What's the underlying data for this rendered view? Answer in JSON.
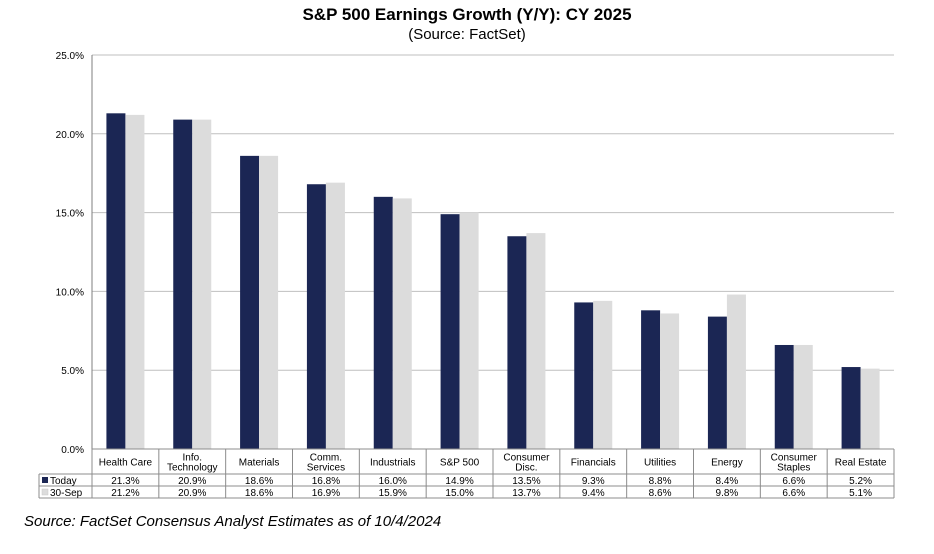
{
  "chart_data": {
    "type": "bar",
    "title": "S&P 500 Earnings Growth (Y/Y): CY 2025",
    "subtitle": "(Source: FactSet)",
    "categories": [
      [
        "Health Care"
      ],
      [
        "Info.",
        "Technology"
      ],
      [
        "Materials"
      ],
      [
        "Comm.",
        "Services"
      ],
      [
        "Industrials"
      ],
      [
        "S&P 500"
      ],
      [
        "Consumer",
        "Disc."
      ],
      [
        "Financials"
      ],
      [
        "Utilities"
      ],
      [
        "Energy"
      ],
      [
        "Consumer",
        "Staples"
      ],
      [
        "Real Estate"
      ]
    ],
    "series": [
      {
        "name": "Today",
        "color": "#1b2654",
        "values": [
          21.3,
          20.9,
          18.6,
          16.8,
          16.0,
          14.9,
          13.5,
          9.3,
          8.8,
          8.4,
          6.6,
          5.2
        ],
        "labels": [
          "21.3%",
          "20.9%",
          "18.6%",
          "16.8%",
          "16.0%",
          "14.9%",
          "13.5%",
          "9.3%",
          "8.8%",
          "8.4%",
          "6.6%",
          "5.2%"
        ]
      },
      {
        "name": "30-Sep",
        "color": "#dcdcdc",
        "values": [
          21.2,
          20.9,
          18.6,
          16.9,
          15.9,
          15.0,
          13.7,
          9.4,
          8.6,
          9.8,
          6.6,
          5.1
        ],
        "labels": [
          "21.2%",
          "20.9%",
          "18.6%",
          "16.9%",
          "15.9%",
          "15.0%",
          "13.7%",
          "9.4%",
          "8.6%",
          "9.8%",
          "6.6%",
          "5.1%"
        ]
      }
    ],
    "ylim": [
      0,
      25
    ],
    "yticks": [
      "0.0%",
      "5.0%",
      "10.0%",
      "15.0%",
      "20.0%",
      "25.0%"
    ],
    "grid": true,
    "legend": "data-table-bottom"
  },
  "source_note": "Source: FactSet Consensus Analyst Estimates as of 10/4/2024"
}
